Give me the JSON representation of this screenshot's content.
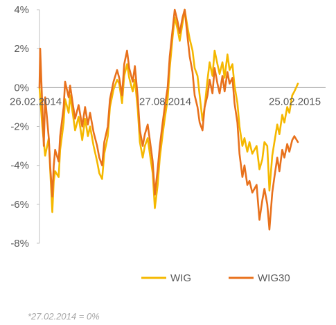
{
  "chart_data": {
    "type": "line",
    "title": "",
    "xlabel": "",
    "ylabel": "",
    "ylim": [
      -8,
      4
    ],
    "y_ticks": [
      4,
      2,
      0,
      -2,
      -4,
      -6,
      -8
    ],
    "y_tick_labels": [
      "4%",
      "2%",
      "0%",
      "-2%",
      "-4%",
      "-6%",
      "-8%"
    ],
    "x_tick_labels": [
      "26.02.2014",
      "27.08.2014",
      "25.02.2015"
    ],
    "x_tick_dates": [
      "2014-02-26",
      "2014-08-27",
      "2015-02-25"
    ],
    "grid": false,
    "legend_position": "bottom-right",
    "series": [
      {
        "name": "WIG",
        "color": "#f5b800",
        "points": [
          [
            "2014-02-27",
            0.0
          ],
          [
            "2014-03-03",
            -2.0
          ],
          [
            "2014-03-07",
            -3.5
          ],
          [
            "2014-03-12",
            -2.6
          ],
          [
            "2014-03-14",
            -4.2
          ],
          [
            "2014-03-17",
            -6.4
          ],
          [
            "2014-03-19",
            -4.8
          ],
          [
            "2014-03-21",
            -4.3
          ],
          [
            "2014-03-26",
            -4.6
          ],
          [
            "2014-03-28",
            -3.2
          ],
          [
            "2014-04-02",
            -1.8
          ],
          [
            "2014-04-04",
            -0.6
          ],
          [
            "2014-04-09",
            -1.3
          ],
          [
            "2014-04-11",
            -0.4
          ],
          [
            "2014-04-15",
            -1.4
          ],
          [
            "2014-04-18",
            -2.2
          ],
          [
            "2014-04-23",
            -1.5
          ],
          [
            "2014-04-28",
            -2.7
          ],
          [
            "2014-05-02",
            -1.6
          ],
          [
            "2014-05-06",
            -2.5
          ],
          [
            "2014-05-09",
            -2.0
          ],
          [
            "2014-05-14",
            -3.0
          ],
          [
            "2014-05-19",
            -3.8
          ],
          [
            "2014-05-22",
            -4.4
          ],
          [
            "2014-05-26",
            -4.7
          ],
          [
            "2014-05-29",
            -3.4
          ],
          [
            "2014-06-03",
            -2.5
          ],
          [
            "2014-06-06",
            -1.0
          ],
          [
            "2014-06-11",
            -0.1
          ],
          [
            "2014-06-16",
            0.4
          ],
          [
            "2014-06-19",
            0.2
          ],
          [
            "2014-06-23",
            -0.8
          ],
          [
            "2014-06-26",
            0.6
          ],
          [
            "2014-06-30",
            1.2
          ],
          [
            "2014-07-03",
            0.5
          ],
          [
            "2014-07-08",
            -0.2
          ],
          [
            "2014-07-11",
            0.4
          ],
          [
            "2014-07-15",
            -1.1
          ],
          [
            "2014-07-18",
            -2.8
          ],
          [
            "2014-07-22",
            -3.6
          ],
          [
            "2014-07-25",
            -3.0
          ],
          [
            "2014-07-29",
            -2.6
          ],
          [
            "2014-08-01",
            -3.4
          ],
          [
            "2014-08-05",
            -4.4
          ],
          [
            "2014-08-08",
            -6.2
          ],
          [
            "2014-08-12",
            -5.0
          ],
          [
            "2014-08-15",
            -3.6
          ],
          [
            "2014-08-19",
            -2.4
          ],
          [
            "2014-08-22",
            -1.6
          ],
          [
            "2014-08-26",
            -0.6
          ],
          [
            "2014-08-29",
            1.0
          ],
          [
            "2014-09-02",
            2.6
          ],
          [
            "2014-09-05",
            3.6
          ],
          [
            "2014-09-09",
            3.0
          ],
          [
            "2014-09-12",
            2.4
          ],
          [
            "2014-09-16",
            3.3
          ],
          [
            "2014-09-19",
            4.0
          ],
          [
            "2014-09-23",
            3.1
          ],
          [
            "2014-09-26",
            2.5
          ],
          [
            "2014-09-30",
            1.9
          ],
          [
            "2014-10-03",
            1.0
          ],
          [
            "2014-10-07",
            0.6
          ],
          [
            "2014-10-10",
            -0.4
          ],
          [
            "2014-10-14",
            -1.7
          ],
          [
            "2014-10-17",
            -1.0
          ],
          [
            "2014-10-21",
            0.4
          ],
          [
            "2014-10-24",
            1.3
          ],
          [
            "2014-10-28",
            0.6
          ],
          [
            "2014-10-31",
            1.9
          ],
          [
            "2014-11-04",
            1.2
          ],
          [
            "2014-11-07",
            0.7
          ],
          [
            "2014-11-11",
            1.3
          ],
          [
            "2014-11-14",
            0.5
          ],
          [
            "2014-11-18",
            1.7
          ],
          [
            "2014-11-21",
            0.9
          ],
          [
            "2014-11-25",
            1.2
          ],
          [
            "2014-11-28",
            0.1
          ],
          [
            "2014-12-02",
            -0.8
          ],
          [
            "2014-12-05",
            -2.0
          ],
          [
            "2014-12-09",
            -3.0
          ],
          [
            "2014-12-12",
            -2.6
          ],
          [
            "2014-12-16",
            -3.3
          ],
          [
            "2014-12-19",
            -2.8
          ],
          [
            "2014-12-23",
            -3.4
          ],
          [
            "2014-12-29",
            -3.0
          ],
          [
            "2015-01-02",
            -4.2
          ],
          [
            "2015-01-06",
            -3.7
          ],
          [
            "2015-01-09",
            -2.8
          ],
          [
            "2015-01-13",
            -3.0
          ],
          [
            "2015-01-16",
            -5.3
          ],
          [
            "2015-01-20",
            -3.5
          ],
          [
            "2015-01-23",
            -2.8
          ],
          [
            "2015-01-27",
            -1.9
          ],
          [
            "2015-01-30",
            -2.4
          ],
          [
            "2015-02-03",
            -1.4
          ],
          [
            "2015-02-06",
            -1.8
          ],
          [
            "2015-02-10",
            -1.0
          ],
          [
            "2015-02-13",
            -1.3
          ],
          [
            "2015-02-17",
            -0.4
          ],
          [
            "2015-02-20",
            -0.2
          ],
          [
            "2015-02-25",
            0.2
          ]
        ]
      },
      {
        "name": "WIG30",
        "color": "#e8711c",
        "points": [
          [
            "2014-02-27",
            0.0
          ],
          [
            "2014-02-28",
            2.0
          ],
          [
            "2014-03-03",
            -1.0
          ],
          [
            "2014-03-05",
            -3.0
          ],
          [
            "2014-03-07",
            -0.5
          ],
          [
            "2014-03-12",
            -2.6
          ],
          [
            "2014-03-14",
            -4.0
          ],
          [
            "2014-03-17",
            -5.6
          ],
          [
            "2014-03-19",
            -4.0
          ],
          [
            "2014-03-21",
            -3.2
          ],
          [
            "2014-03-26",
            -3.8
          ],
          [
            "2014-03-28",
            -2.5
          ],
          [
            "2014-04-02",
            -1.0
          ],
          [
            "2014-04-04",
            0.3
          ],
          [
            "2014-04-09",
            -0.5
          ],
          [
            "2014-04-11",
            0.1
          ],
          [
            "2014-04-15",
            -0.9
          ],
          [
            "2014-04-18",
            -1.6
          ],
          [
            "2014-04-23",
            -0.9
          ],
          [
            "2014-04-28",
            -2.0
          ],
          [
            "2014-05-02",
            -1.0
          ],
          [
            "2014-05-06",
            -1.9
          ],
          [
            "2014-05-09",
            -1.3
          ],
          [
            "2014-05-14",
            -2.3
          ],
          [
            "2014-05-19",
            -3.0
          ],
          [
            "2014-05-22",
            -3.6
          ],
          [
            "2014-05-26",
            -4.0
          ],
          [
            "2014-05-29",
            -2.8
          ],
          [
            "2014-06-03",
            -2.0
          ],
          [
            "2014-06-06",
            -0.6
          ],
          [
            "2014-06-11",
            0.3
          ],
          [
            "2014-06-16",
            0.9
          ],
          [
            "2014-06-19",
            0.5
          ],
          [
            "2014-06-23",
            -0.4
          ],
          [
            "2014-06-26",
            1.2
          ],
          [
            "2014-06-30",
            1.9
          ],
          [
            "2014-07-03",
            1.0
          ],
          [
            "2014-07-08",
            0.3
          ],
          [
            "2014-07-11",
            1.1
          ],
          [
            "2014-07-15",
            -0.5
          ],
          [
            "2014-07-18",
            -2.2
          ],
          [
            "2014-07-22",
            -3.0
          ],
          [
            "2014-07-25",
            -2.4
          ],
          [
            "2014-07-29",
            -1.9
          ],
          [
            "2014-08-01",
            -2.7
          ],
          [
            "2014-08-05",
            -3.8
          ],
          [
            "2014-08-08",
            -5.5
          ],
          [
            "2014-08-12",
            -4.2
          ],
          [
            "2014-08-15",
            -3.0
          ],
          [
            "2014-08-19",
            -1.8
          ],
          [
            "2014-08-22",
            -1.0
          ],
          [
            "2014-08-26",
            0.0
          ],
          [
            "2014-08-29",
            1.6
          ],
          [
            "2014-09-02",
            3.0
          ],
          [
            "2014-09-05",
            4.0
          ],
          [
            "2014-09-09",
            3.4
          ],
          [
            "2014-09-12",
            2.8
          ],
          [
            "2014-09-16",
            3.6
          ],
          [
            "2014-09-19",
            4.0
          ],
          [
            "2014-09-23",
            2.6
          ],
          [
            "2014-09-26",
            1.6
          ],
          [
            "2014-09-30",
            0.8
          ],
          [
            "2014-10-03",
            -0.4
          ],
          [
            "2014-10-07",
            -1.0
          ],
          [
            "2014-10-10",
            -1.8
          ],
          [
            "2014-10-14",
            -2.2
          ],
          [
            "2014-10-17",
            -1.0
          ],
          [
            "2014-10-21",
            -0.4
          ],
          [
            "2014-10-24",
            0.4
          ],
          [
            "2014-10-28",
            -0.3
          ],
          [
            "2014-10-31",
            1.0
          ],
          [
            "2014-11-04",
            0.2
          ],
          [
            "2014-11-07",
            -0.3
          ],
          [
            "2014-11-11",
            0.6
          ],
          [
            "2014-11-14",
            -0.2
          ],
          [
            "2014-11-18",
            0.8
          ],
          [
            "2014-11-21",
            0.2
          ],
          [
            "2014-11-25",
            0.5
          ],
          [
            "2014-11-28",
            -0.8
          ],
          [
            "2014-12-02",
            -1.8
          ],
          [
            "2014-12-05",
            -3.4
          ],
          [
            "2014-12-09",
            -4.6
          ],
          [
            "2014-12-12",
            -4.0
          ],
          [
            "2014-12-16",
            -5.0
          ],
          [
            "2014-12-19",
            -4.8
          ],
          [
            "2014-12-23",
            -5.4
          ],
          [
            "2014-12-29",
            -5.0
          ],
          [
            "2015-01-02",
            -6.8
          ],
          [
            "2015-01-06",
            -5.8
          ],
          [
            "2015-01-09",
            -5.2
          ],
          [
            "2015-01-13",
            -6.0
          ],
          [
            "2015-01-16",
            -7.3
          ],
          [
            "2015-01-20",
            -5.4
          ],
          [
            "2015-01-23",
            -4.6
          ],
          [
            "2015-01-27",
            -3.6
          ],
          [
            "2015-01-30",
            -4.3
          ],
          [
            "2015-02-03",
            -3.2
          ],
          [
            "2015-02-06",
            -3.6
          ],
          [
            "2015-02-10",
            -2.9
          ],
          [
            "2015-02-13",
            -3.3
          ],
          [
            "2015-02-17",
            -2.7
          ],
          [
            "2015-02-20",
            -2.5
          ],
          [
            "2015-02-25",
            -2.8
          ]
        ]
      }
    ]
  },
  "legend": {
    "items": [
      {
        "label": "WIG",
        "color": "#f5b800"
      },
      {
        "label": "WIG30",
        "color": "#e8711c"
      }
    ]
  },
  "footnote": "*27.02.2014 = 0%"
}
